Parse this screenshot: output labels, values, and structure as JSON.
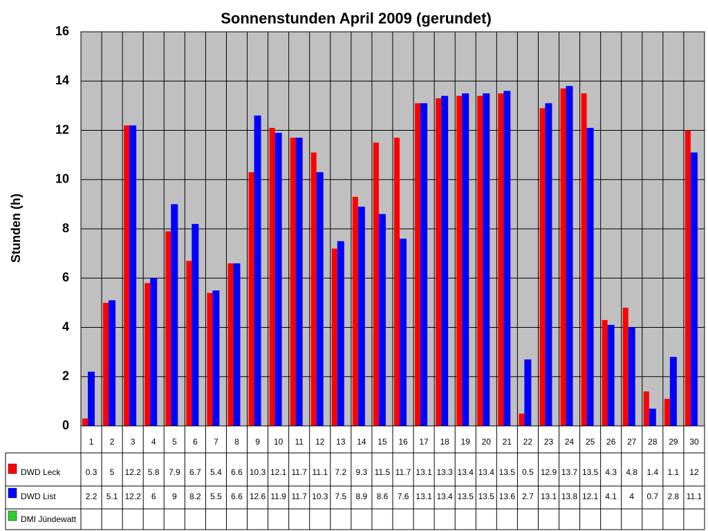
{
  "chart_data": {
    "type": "bar",
    "title": "Sonnenstunden April 2009 (gerundet)",
    "y_label": "Stunden (h)",
    "categories": [
      "1",
      "2",
      "3",
      "4",
      "5",
      "6",
      "7",
      "8",
      "9",
      "10",
      "11",
      "12",
      "13",
      "14",
      "15",
      "16",
      "17",
      "18",
      "19",
      "20",
      "21",
      "22",
      "23",
      "24",
      "25",
      "26",
      "27",
      "28",
      "29",
      "30"
    ],
    "series": [
      {
        "name": "DWD Leck",
        "color": "#ff0000",
        "values": [
          0.3,
          5,
          12.2,
          5.8,
          7.9,
          6.7,
          5.4,
          6.6,
          10.3,
          12.1,
          11.7,
          11.1,
          7.2,
          9.3,
          11.5,
          11.7,
          13.1,
          13.3,
          13.4,
          13.4,
          13.5,
          0.5,
          12.9,
          13.7,
          13.5,
          4.3,
          4.8,
          1.4,
          1.1,
          12
        ]
      },
      {
        "name": "DWD List",
        "color": "#0000ff",
        "values": [
          2.2,
          5.1,
          12.2,
          6,
          9,
          8.2,
          5.5,
          6.6,
          12.6,
          11.9,
          11.7,
          10.3,
          7.5,
          8.9,
          8.6,
          7.6,
          13.1,
          13.4,
          13.5,
          13.5,
          13.6,
          2.7,
          13.1,
          13.8,
          12.1,
          4.1,
          4,
          0.7,
          2.8,
          11.1
        ]
      },
      {
        "name": "DMI Jündewatt",
        "color": "#33cc33",
        "values": [
          null,
          null,
          null,
          null,
          null,
          null,
          null,
          null,
          null,
          null,
          null,
          null,
          null,
          null,
          null,
          null,
          null,
          null,
          null,
          null,
          null,
          null,
          null,
          null,
          null,
          null,
          null,
          null,
          null,
          null
        ]
      }
    ],
    "ylim": [
      0,
      16
    ],
    "yticks": [
      0,
      2,
      4,
      6,
      8,
      10,
      12,
      14,
      16
    ],
    "grid": true,
    "data_table": true
  }
}
